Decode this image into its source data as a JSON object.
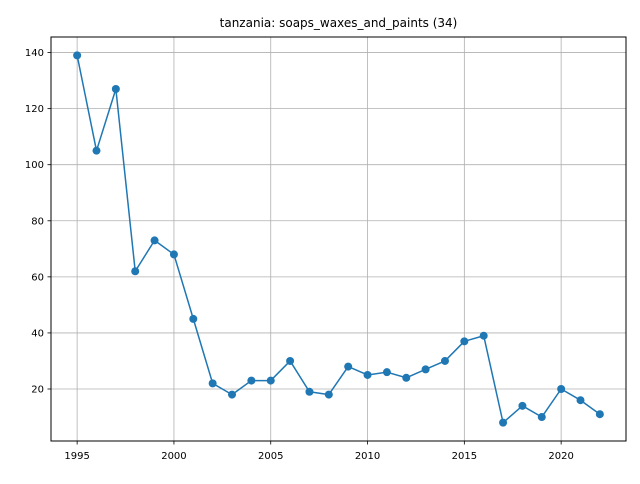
{
  "chart_data": {
    "type": "line",
    "title": "tanzania: soaps_waxes_and_paints (34)",
    "xlabel": "",
    "ylabel": "",
    "x": [
      1995,
      1996,
      1997,
      1998,
      1999,
      2000,
      2001,
      2002,
      2003,
      2004,
      2005,
      2006,
      2007,
      2008,
      2009,
      2010,
      2011,
      2012,
      2013,
      2014,
      2015,
      2016,
      2017,
      2018,
      2019,
      2020,
      2021,
      2022
    ],
    "series": [
      {
        "values": [
          139,
          105,
          127,
          62,
          73,
          68,
          45,
          22,
          18,
          23,
          23,
          30,
          19,
          18,
          28,
          25,
          26,
          24,
          27,
          30,
          37,
          39,
          8,
          14,
          10,
          20,
          16,
          11
        ],
        "color": "#1f77b4",
        "marker": "circle"
      }
    ],
    "xlim": [
      1993.65,
      2023.35
    ],
    "ylim": [
      1.45,
      145.55
    ],
    "x_ticks": [
      1995,
      2000,
      2005,
      2010,
      2015,
      2020
    ],
    "y_ticks": [
      20,
      40,
      60,
      80,
      100,
      120,
      140
    ],
    "grid": true,
    "legend": "none"
  }
}
